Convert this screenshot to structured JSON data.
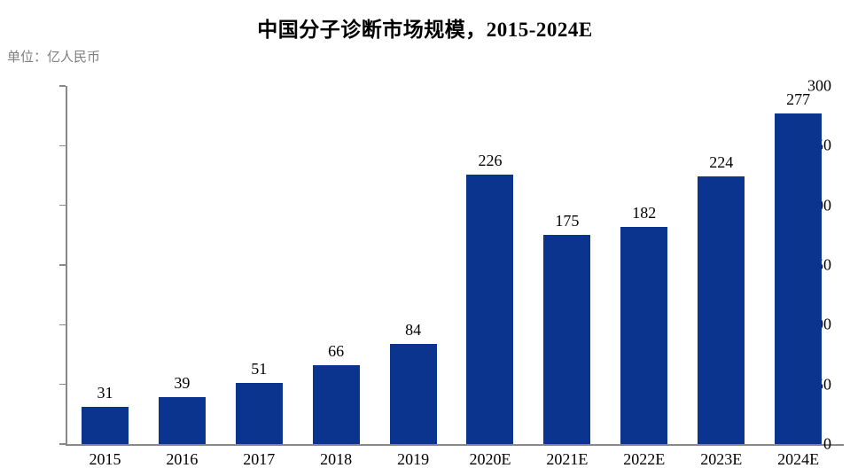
{
  "chart_data": {
    "type": "bar",
    "title": "中国分子诊断市场规模，2015-2024E",
    "unit_label": "单位：亿人民币",
    "categories": [
      "2015",
      "2016",
      "2017",
      "2018",
      "2019",
      "2020E",
      "2021E",
      "2022E",
      "2023E",
      "2024E"
    ],
    "values": [
      31,
      39,
      51,
      66,
      84,
      226,
      175,
      182,
      224,
      277
    ],
    "xlabel": "",
    "ylabel": "",
    "ylim": [
      0,
      300
    ],
    "ytick_step": 50,
    "yticks": [
      0,
      50,
      100,
      150,
      200,
      250,
      300
    ],
    "grid": false,
    "legend_position": "none",
    "colors": {
      "bar": "#0B348F",
      "axis": "#898989",
      "title": "#000000",
      "labels": "#000000",
      "unit_label": "#808080",
      "background": "#FFFFFF"
    }
  }
}
